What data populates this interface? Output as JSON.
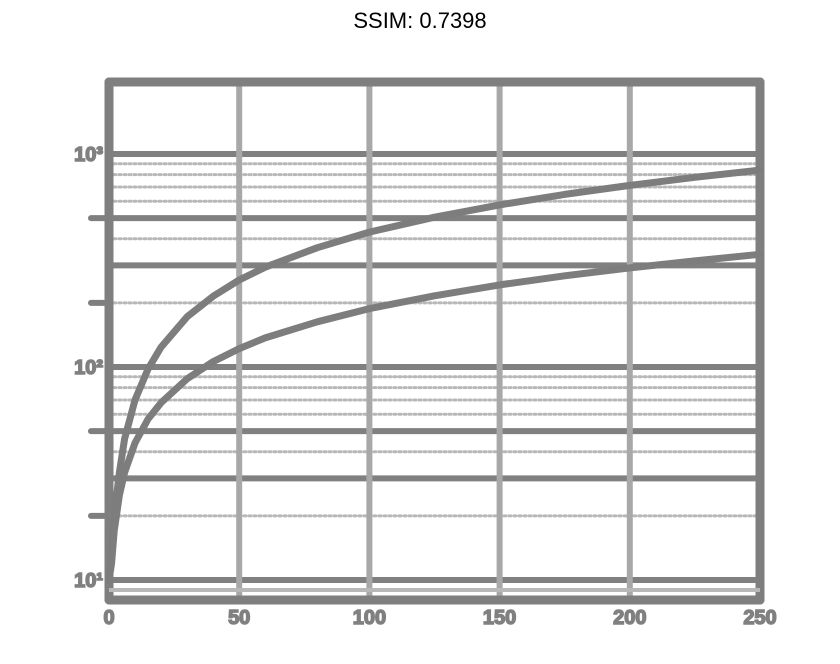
{
  "chart_data": {
    "type": "line",
    "title": "SSIM: 0.7398",
    "xlabel": "",
    "ylabel": "",
    "xscale": "linear",
    "yscale": "log",
    "xlim": [
      0,
      250
    ],
    "ylim_exponents": [
      1.0,
      3.1
    ],
    "x_ticks": [
      0,
      50,
      100,
      150,
      200,
      250
    ],
    "x_tick_labels": [
      "0",
      "50",
      "100",
      "150",
      "200",
      "250"
    ],
    "y_major_ticks": [
      10,
      100,
      1000
    ],
    "y_tick_labels": [
      "10¹",
      "10²",
      "10³"
    ],
    "grid": true,
    "legend": "none",
    "colors": {
      "axes": "#7f7f7f",
      "grid_major": "#808080",
      "grid_minor": "#b8b8b8",
      "vertical_grid": "#a8a8a8",
      "series": "#7d7d7d",
      "title": "#000000"
    },
    "series": [
      {
        "x": [
          0,
          1,
          2,
          4,
          6,
          10,
          15,
          20,
          30,
          40,
          50,
          60,
          80,
          100,
          125,
          150,
          175,
          200,
          225,
          250
        ],
        "y": [
          10,
          13,
          20,
          32,
          46,
          70,
          98,
          124,
          172,
          215,
          256,
          294,
          363,
          430,
          505,
          577,
          646,
          712,
          777,
          840
        ]
      },
      {
        "x": [
          0,
          1,
          2,
          4,
          6,
          10,
          15,
          20,
          30,
          40,
          50,
          60,
          80,
          100,
          125,
          150,
          175,
          200,
          225,
          250
        ],
        "y": [
          10,
          12,
          17,
          25,
          32,
          44,
          57,
          68,
          88,
          106,
          122,
          137,
          163,
          188,
          216,
          243,
          268,
          292,
          315,
          338
        ]
      }
    ]
  }
}
